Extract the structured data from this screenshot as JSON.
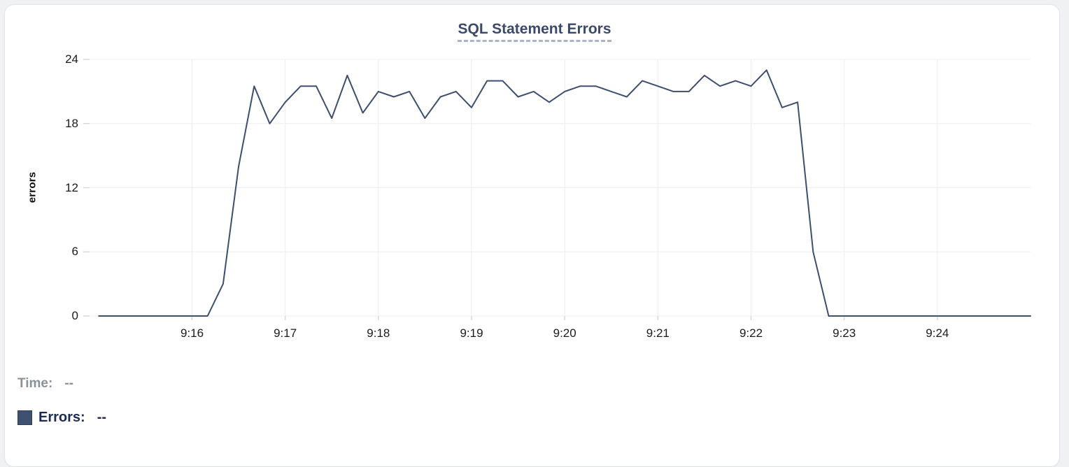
{
  "tooltip": {
    "time_label": "Time:",
    "time_value": "--",
    "errors_label": "Errors:",
    "errors_value": "--"
  },
  "chart_data": {
    "type": "line",
    "title": "SQL Statement Errors",
    "xlabel": "",
    "ylabel": "errors",
    "ylim": [
      0,
      24
    ],
    "y_ticks": [
      0,
      6,
      12,
      18,
      24
    ],
    "x_ticks": [
      "9:16",
      "9:17",
      "9:18",
      "9:19",
      "9:20",
      "9:21",
      "9:22",
      "9:23",
      "9:24"
    ],
    "x_range": [
      "9:15:00",
      "9:25:00"
    ],
    "grid": true,
    "legend_position": "bottom-left",
    "colors": {
      "line": "#3d4e6e",
      "swatch": "#40506f",
      "title": "#3b4a6a",
      "grid": "#ededed",
      "tick_stub": "#d7d8da",
      "tooltip_time_text": "#8b9199",
      "tooltip_errors_text": "#1d2c53"
    },
    "series": [
      {
        "name": "Errors",
        "color": "#3d4e6e",
        "points": [
          [
            "9:15:00",
            0
          ],
          [
            "9:15:10",
            0
          ],
          [
            "9:15:20",
            0
          ],
          [
            "9:15:30",
            0
          ],
          [
            "9:15:40",
            0
          ],
          [
            "9:15:50",
            0
          ],
          [
            "9:16:00",
            0
          ],
          [
            "9:16:10",
            0
          ],
          [
            "9:16:20",
            3
          ],
          [
            "9:16:30",
            14
          ],
          [
            "9:16:40",
            21.5
          ],
          [
            "9:16:50",
            18
          ],
          [
            "9:17:00",
            20
          ],
          [
            "9:17:10",
            21.5
          ],
          [
            "9:17:20",
            21.5
          ],
          [
            "9:17:30",
            18.5
          ],
          [
            "9:17:40",
            22.5
          ],
          [
            "9:17:50",
            19
          ],
          [
            "9:18:00",
            21
          ],
          [
            "9:18:10",
            20.5
          ],
          [
            "9:18:20",
            21
          ],
          [
            "9:18:30",
            18.5
          ],
          [
            "9:18:40",
            20.5
          ],
          [
            "9:18:50",
            21
          ],
          [
            "9:19:00",
            19.5
          ],
          [
            "9:19:10",
            22
          ],
          [
            "9:19:20",
            22
          ],
          [
            "9:19:30",
            20.5
          ],
          [
            "9:19:40",
            21
          ],
          [
            "9:19:50",
            20
          ],
          [
            "9:20:00",
            21
          ],
          [
            "9:20:10",
            21.5
          ],
          [
            "9:20:20",
            21.5
          ],
          [
            "9:20:30",
            21
          ],
          [
            "9:20:40",
            20.5
          ],
          [
            "9:20:50",
            22
          ],
          [
            "9:21:00",
            21.5
          ],
          [
            "9:21:10",
            21
          ],
          [
            "9:21:20",
            21
          ],
          [
            "9:21:30",
            22.5
          ],
          [
            "9:21:40",
            21.5
          ],
          [
            "9:21:50",
            22
          ],
          [
            "9:22:00",
            21.5
          ],
          [
            "9:22:10",
            23
          ],
          [
            "9:22:20",
            19.5
          ],
          [
            "9:22:30",
            20
          ],
          [
            "9:22:40",
            6
          ],
          [
            "9:22:50",
            0
          ],
          [
            "9:23:00",
            0
          ],
          [
            "9:23:10",
            0
          ],
          [
            "9:23:20",
            0
          ],
          [
            "9:23:30",
            0
          ],
          [
            "9:23:40",
            0
          ],
          [
            "9:23:50",
            0
          ],
          [
            "9:24:00",
            0
          ],
          [
            "9:24:10",
            0
          ],
          [
            "9:24:20",
            0
          ],
          [
            "9:24:30",
            0
          ],
          [
            "9:24:40",
            0
          ],
          [
            "9:24:50",
            0
          ],
          [
            "9:25:00",
            0
          ]
        ]
      }
    ]
  }
}
